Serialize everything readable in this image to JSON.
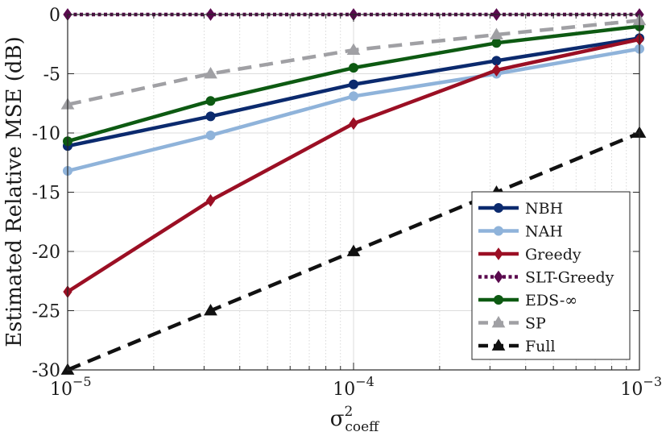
{
  "chart_data": {
    "type": "line",
    "xscale": "log",
    "x": [
      1e-05,
      3.162e-05,
      0.0001,
      0.0003162,
      0.001
    ],
    "xlim": [
      1e-05,
      0.001
    ],
    "ylim": [
      -30,
      0
    ],
    "grid": true,
    "legend_position": "bottom-right",
    "xlabel": {
      "base": "σ",
      "sup": "2",
      "sub": "coeff"
    },
    "ylabel": "Estimated Relative MSE (dB)",
    "x_ticks": [
      {
        "value": 1e-05,
        "base": "10",
        "exp": "−5"
      },
      {
        "value": 0.0001,
        "base": "10",
        "exp": "−4"
      },
      {
        "value": 0.001,
        "base": "10",
        "exp": "−3"
      }
    ],
    "y_ticks": [
      {
        "value": 0,
        "label": "0"
      },
      {
        "value": -5,
        "label": "-5"
      },
      {
        "value": -10,
        "label": "-10"
      },
      {
        "value": -15,
        "label": "-15"
      },
      {
        "value": -20,
        "label": "-20"
      },
      {
        "value": -25,
        "label": "-25"
      },
      {
        "value": -30,
        "label": "-30"
      }
    ],
    "series": [
      {
        "name": "NBH",
        "color": "#0b2a6e",
        "dash": "solid",
        "marker": "circle",
        "values": [
          -11.1,
          -8.6,
          -5.9,
          -3.9,
          -2.0
        ]
      },
      {
        "name": "NAH",
        "color": "#8fb3da",
        "dash": "solid",
        "marker": "circle",
        "values": [
          -13.2,
          -10.2,
          -6.9,
          -5.0,
          -2.9
        ]
      },
      {
        "name": "Greedy",
        "color": "#9b0f24",
        "dash": "solid",
        "marker": "diamond",
        "values": [
          -23.4,
          -15.7,
          -9.2,
          -4.7,
          -2.1
        ]
      },
      {
        "name": "SLT-Greedy",
        "color": "#5a0a4e",
        "dash": "dotted",
        "marker": "diamond",
        "values": [
          0,
          0,
          0,
          0,
          0
        ]
      },
      {
        "name": "EDS-∞",
        "color": "#0d5a12",
        "dash": "solid",
        "marker": "circle",
        "values": [
          -10.7,
          -7.3,
          -4.5,
          -2.4,
          -1.0
        ]
      },
      {
        "name": "SP",
        "color": "#a0a0a4",
        "dash": "dashed",
        "marker": "triangle",
        "values": [
          -7.6,
          -5.0,
          -3.0,
          -1.7,
          -0.5
        ]
      },
      {
        "name": "Full",
        "color": "#111111",
        "dash": "dashed",
        "marker": "triangle",
        "values": [
          -30.0,
          -25.0,
          -20.0,
          -15.0,
          -10.0
        ]
      }
    ]
  }
}
